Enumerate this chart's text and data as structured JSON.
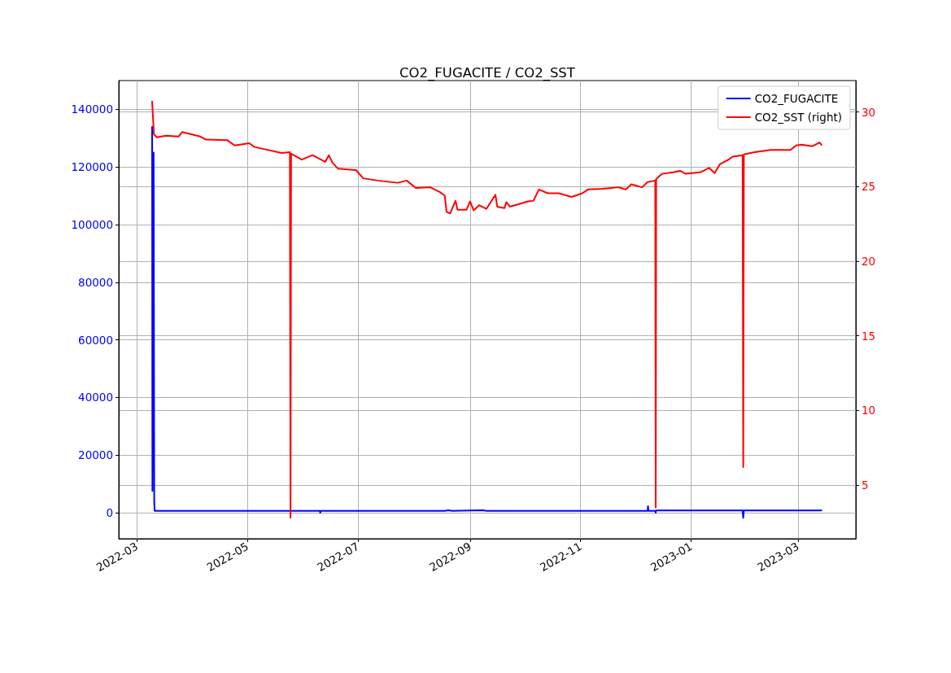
{
  "chart_data": {
    "type": "line",
    "title": "CO2_FUGACITE / CO2_SST",
    "xlim": [
      "2022-02-19",
      "2023-04-02"
    ],
    "xticks": [
      "2022-03",
      "2022-05",
      "2022-07",
      "2022-09",
      "2022-11",
      "2023-01",
      "2023-03"
    ],
    "ylim": [
      -9000,
      150000
    ],
    "yticks": [
      0,
      20000,
      40000,
      60000,
      80000,
      100000,
      120000,
      140000
    ],
    "y2lim": [
      1.4,
      32.1
    ],
    "y2ticks": [
      5,
      10,
      15,
      20,
      25,
      30
    ],
    "grid": true,
    "legend": "top right",
    "series": [
      {
        "name": "CO2_FUGACITE",
        "color": "#0000ff",
        "x": [
          "2022-03-09T10:00",
          "2022-03-09T14:00",
          "2022-03-10T06:00",
          "2022-03-10T14:00",
          "2022-03-10T20:00",
          "2022-04-15",
          "2022-06-10T00:00",
          "2022-06-10T06:00",
          "2022-06-10T12:00",
          "2022-08-18",
          "2022-08-20",
          "2022-08-22",
          "2022-09-08",
          "2022-09-10",
          "2022-12-08T00:00",
          "2022-12-08T06:00",
          "2022-12-08T12:00",
          "2022-12-12T06:00",
          "2022-12-12T12:00",
          "2022-12-12T18:00",
          "2023-01-29T12:00",
          "2023-01-29T20:00",
          "2023-01-30T04:00",
          "2023-03-14"
        ],
        "values": [
          134000,
          7600,
          125000,
          4000,
          700,
          700,
          700,
          0,
          700,
          700,
          900,
          700,
          900,
          700,
          700,
          2300,
          700,
          700,
          0,
          800,
          800,
          -1800,
          800,
          800
        ]
      },
      {
        "name": "CO2_SST (right)",
        "color": "#ff0000",
        "axis": "y2",
        "x": [
          "2022-03-09T10:00",
          "2022-03-10T10:00",
          "2022-03-12",
          "2022-03-17",
          "2022-03-24",
          "2022-03-26",
          "2022-04-05",
          "2022-04-08",
          "2022-04-20",
          "2022-04-24",
          "2022-05-02",
          "2022-05-05",
          "2022-05-20",
          "2022-05-24T12:00",
          "2022-05-24T20:00",
          "2022-05-25T04:00",
          "2022-05-31",
          "2022-06-06",
          "2022-06-13",
          "2022-06-15",
          "2022-06-17",
          "2022-06-20",
          "2022-06-30",
          "2022-07-04",
          "2022-07-12",
          "2022-07-23",
          "2022-07-28",
          "2022-08-02",
          "2022-08-10",
          "2022-08-15",
          "2022-08-18",
          "2022-08-19",
          "2022-08-21",
          "2022-08-24",
          "2022-08-25",
          "2022-08-30",
          "2022-09-01",
          "2022-09-03",
          "2022-09-06",
          "2022-09-10",
          "2022-09-15",
          "2022-09-16",
          "2022-09-20",
          "2022-09-21",
          "2022-09-23",
          "2022-10-03",
          "2022-10-06",
          "2022-10-09",
          "2022-10-14",
          "2022-10-20",
          "2022-10-27",
          "2022-11-02",
          "2022-11-05",
          "2022-11-13",
          "2022-11-22",
          "2022-11-26",
          "2022-11-29",
          "2022-12-05",
          "2022-12-08",
          "2022-12-12T06:00",
          "2022-12-12T12:00",
          "2022-12-12T18:00",
          "2022-12-16",
          "2022-12-22",
          "2022-12-26",
          "2022-12-29",
          "2023-01-06",
          "2023-01-11",
          "2023-01-14",
          "2023-01-17",
          "2023-01-21",
          "2023-01-24",
          "2023-01-29T12:00",
          "2023-01-29T20:00",
          "2023-01-30T04:00",
          "2023-02-05",
          "2023-02-14",
          "2023-02-25",
          "2023-02-28",
          "2023-03-03",
          "2023-03-09",
          "2023-03-13",
          "2023-03-14"
        ],
        "values": [
          30.7,
          28.5,
          28.3,
          28.4,
          28.35,
          28.65,
          28.35,
          28.15,
          28.1,
          27.75,
          27.9,
          27.65,
          27.25,
          27.3,
          2.8,
          27.2,
          26.8,
          27.1,
          26.65,
          27.1,
          26.6,
          26.2,
          26.1,
          25.55,
          25.4,
          25.25,
          25.4,
          24.9,
          24.95,
          24.65,
          24.4,
          23.3,
          23.2,
          24.05,
          23.45,
          23.45,
          24.0,
          23.4,
          23.75,
          23.5,
          24.45,
          23.65,
          23.55,
          23.95,
          23.65,
          24.0,
          24.05,
          24.8,
          24.55,
          24.55,
          24.3,
          24.55,
          24.8,
          24.85,
          24.95,
          24.8,
          25.15,
          24.95,
          25.3,
          25.4,
          3.5,
          25.5,
          25.85,
          25.95,
          26.05,
          25.85,
          25.95,
          26.25,
          25.9,
          26.5,
          26.75,
          27.0,
          27.1,
          6.2,
          27.15,
          27.3,
          27.45,
          27.45,
          27.75,
          27.8,
          27.7,
          27.95,
          27.8
        ]
      }
    ]
  }
}
